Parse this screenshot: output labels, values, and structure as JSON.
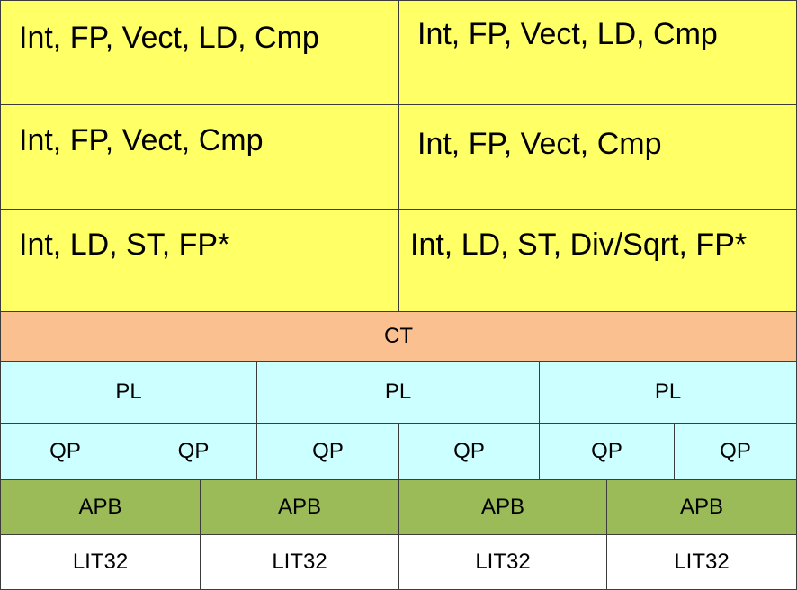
{
  "colors": {
    "execution_units": "#ffff66",
    "ct": "#fac090",
    "pl_qp": "#ccffff",
    "apb": "#9bbb59",
    "lit32": "#ffffff",
    "border": "#3c3c3c"
  },
  "execution_rows": [
    {
      "left": "Int, FP, Vect, LD, Cmp",
      "right": "Int, FP, Vect, LD, Cmp"
    },
    {
      "left": "Int, FP, Vect, Cmp",
      "right": "Int, FP, Vect, Cmp"
    },
    {
      "left": "Int, LD, ST, FP*",
      "right": "Int, LD, ST, Div/Sqrt, FP*"
    }
  ],
  "ct": "CT",
  "pl": [
    "PL",
    "PL",
    "PL"
  ],
  "qp": [
    "QP",
    "QP",
    "QP",
    "QP",
    "QP",
    "QP"
  ],
  "apb": [
    "APB",
    "APB",
    "APB",
    "APB"
  ],
  "lit32": [
    "LIT32",
    "LIT32",
    "LIT32",
    "LIT32"
  ]
}
